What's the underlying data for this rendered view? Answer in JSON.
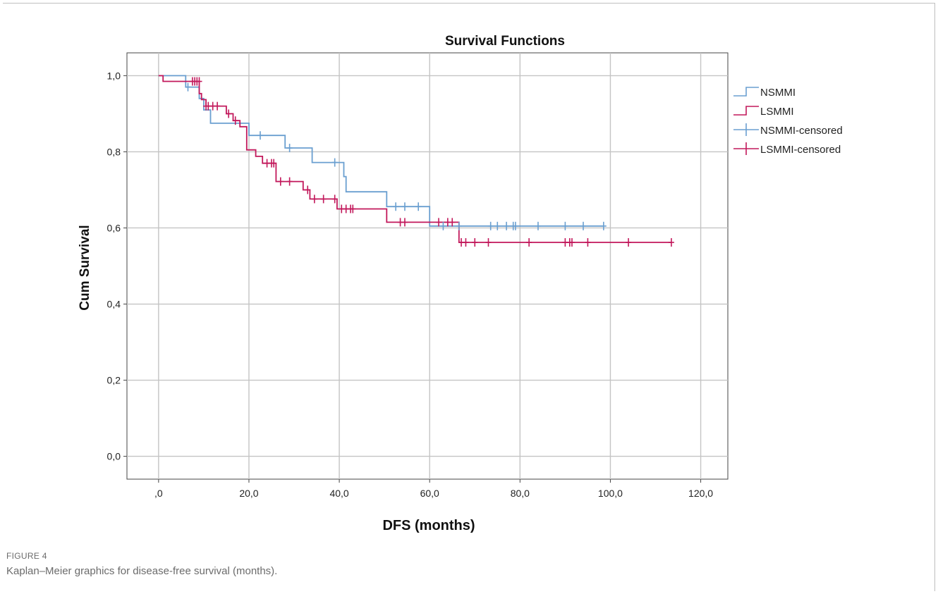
{
  "chart_data": {
    "type": "line",
    "title": "Survival Functions",
    "xlabel": "DFS (months)",
    "ylabel": "Cum Survival",
    "xlim": [
      -7,
      126
    ],
    "ylim": [
      -0.06,
      1.06
    ],
    "xticks": [
      0,
      20,
      40,
      60,
      80,
      100,
      120
    ],
    "xtick_labels": [
      ",0",
      "20,0",
      "40,0",
      "60,0",
      "80,0",
      "100,0",
      "120,0"
    ],
    "yticks": [
      0,
      0.2,
      0.4,
      0.6,
      0.8,
      1.0
    ],
    "ytick_labels": [
      "0,0",
      "0,2",
      "0,4",
      "0,6",
      "0,8",
      "1,0"
    ],
    "grid": true,
    "legend_position": "right",
    "series": [
      {
        "name": "NSMMI",
        "color": "#6a9fd0",
        "x": [
          0,
          6,
          6,
          9,
          9,
          10,
          10,
          11.5,
          11.5,
          20,
          20,
          28,
          28,
          34,
          34,
          41,
          41,
          41.5,
          41.5,
          50.5,
          50.5,
          60,
          60,
          98.5
        ],
        "y": [
          1.0,
          1.0,
          0.97,
          0.97,
          0.94,
          0.94,
          0.91,
          0.91,
          0.875,
          0.875,
          0.843,
          0.843,
          0.81,
          0.81,
          0.772,
          0.772,
          0.735,
          0.735,
          0.695,
          0.695,
          0.656,
          0.656,
          0.605,
          0.605
        ]
      },
      {
        "name": "LSMMI",
        "color": "#c2185b",
        "x": [
          0,
          1,
          1,
          9,
          9,
          9.5,
          9.5,
          10.5,
          10.5,
          15,
          15,
          16.5,
          16.5,
          18,
          18,
          19.5,
          19.5,
          21.5,
          21.5,
          23,
          23,
          26,
          26,
          32,
          32,
          33.5,
          33.5,
          39.5,
          39.5,
          50.5,
          50.5,
          66.5,
          66.5,
          113.5
        ],
        "y": [
          1.0,
          1.0,
          0.985,
          0.985,
          0.953,
          0.953,
          0.937,
          0.937,
          0.92,
          0.92,
          0.9,
          0.9,
          0.882,
          0.882,
          0.866,
          0.866,
          0.805,
          0.805,
          0.788,
          0.788,
          0.77,
          0.77,
          0.722,
          0.722,
          0.7,
          0.7,
          0.676,
          0.676,
          0.65,
          0.65,
          0.615,
          0.615,
          0.562,
          0.562
        ]
      },
      {
        "name": "NSMMI-censored",
        "color": "#6a9fd0",
        "x": [
          6.5,
          22.5,
          29,
          39,
          52.5,
          54.5,
          57.5,
          63,
          66.5,
          73.5,
          75,
          77,
          78.5,
          79,
          84,
          90,
          94,
          98.5
        ],
        "y": [
          0.97,
          0.843,
          0.81,
          0.772,
          0.656,
          0.656,
          0.656,
          0.605,
          0.605,
          0.605,
          0.605,
          0.605,
          0.605,
          0.605,
          0.605,
          0.605,
          0.605,
          0.605
        ]
      },
      {
        "name": "LSMMI-censored",
        "color": "#c2185b",
        "x": [
          7.5,
          8,
          8.5,
          9,
          10.5,
          11,
          12,
          13,
          15.5,
          17,
          24,
          25,
          25.5,
          27,
          29,
          33,
          34.5,
          36.5,
          39,
          40.5,
          41.5,
          42.5,
          43,
          53.5,
          54.5,
          62,
          64,
          65,
          67,
          68,
          70,
          73,
          82,
          90,
          91,
          91.5,
          95,
          104,
          113.5
        ],
        "y": [
          0.985,
          0.985,
          0.985,
          0.985,
          0.92,
          0.92,
          0.92,
          0.92,
          0.9,
          0.882,
          0.77,
          0.77,
          0.77,
          0.722,
          0.722,
          0.7,
          0.676,
          0.676,
          0.676,
          0.65,
          0.65,
          0.65,
          0.65,
          0.615,
          0.615,
          0.615,
          0.615,
          0.615,
          0.562,
          0.562,
          0.562,
          0.562,
          0.562,
          0.562,
          0.562,
          0.562,
          0.562,
          0.562,
          0.562
        ]
      }
    ]
  },
  "caption": {
    "figure_label": "FIGURE 4",
    "text": "Kaplan–Meier graphics for disease-free survival (months)."
  }
}
